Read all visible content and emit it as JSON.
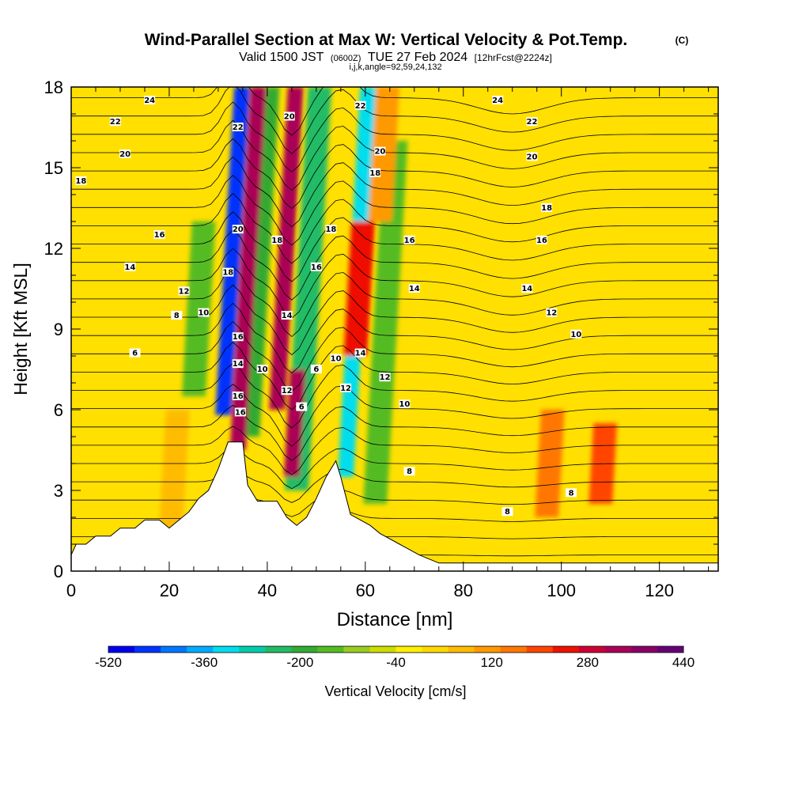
{
  "title": {
    "main": "Wind-Parallel Section at Max W: Vertical Velocity & Pot.Temp.",
    "copyright": "(C)",
    "valid_prefix": "Valid 1500 JST",
    "valid_utc": "(0600Z)",
    "valid_date": "TUE 27 Feb 2024",
    "forecast": "[12hrFcst@2224z]",
    "indices": "i,j,k,angle=92,59,24,132"
  },
  "chart_data": {
    "type": "heatmap",
    "xlabel": "Distance [nm]",
    "ylabel": "Height [Kft MSL]",
    "xlim": [
      0,
      132
    ],
    "ylim": [
      0,
      18
    ],
    "x_ticks": [
      "0",
      "20",
      "40",
      "60",
      "80",
      "100",
      "120"
    ],
    "y_ticks": [
      "0",
      "3",
      "6",
      "9",
      "12",
      "15",
      "18"
    ],
    "background_w": 0,
    "velocity_bands": [
      {
        "x": 31,
        "z0": 5.8,
        "z1": 18,
        "w": -470
      },
      {
        "x": 36,
        "z0": 5.0,
        "z1": 18,
        "w": -210
      },
      {
        "x": 34,
        "z0": 4.5,
        "z1": 18,
        "w": 330
      },
      {
        "x": 42,
        "z0": 6.0,
        "z1": 18,
        "w": 350
      },
      {
        "x": 46,
        "z0": 3.0,
        "z1": 18,
        "w": -250
      },
      {
        "x": 56,
        "z0": 3.5,
        "z1": 18,
        "w": -330
      },
      {
        "x": 62,
        "z0": 2.5,
        "z1": 16,
        "w": -150
      },
      {
        "x": 58,
        "z0": 8.0,
        "z1": 13,
        "w": 260
      },
      {
        "x": 63,
        "z0": 13,
        "z1": 18,
        "w": 120
      },
      {
        "x": 25,
        "z0": 6.5,
        "z1": 13,
        "w": -170
      },
      {
        "x": 45,
        "z0": 3.5,
        "z1": 7.5,
        "w": 310
      },
      {
        "x": 108,
        "z0": 2.5,
        "z1": 5.5,
        "w": 200
      },
      {
        "x": 97,
        "z0": 2.0,
        "z1": 6.0,
        "w": 140
      },
      {
        "x": 20,
        "z0": 0.5,
        "z1": 6.0,
        "w": 80
      }
    ],
    "theta_contours": {
      "levels_labeled": [
        "6",
        "8",
        "10",
        "12",
        "14",
        "16",
        "18",
        "20",
        "22",
        "24"
      ],
      "labels": [
        {
          "t": "24",
          "x": 16,
          "z": 17.5
        },
        {
          "t": "22",
          "x": 9,
          "z": 16.7
        },
        {
          "t": "20",
          "x": 11,
          "z": 15.5
        },
        {
          "t": "18",
          "x": 2,
          "z": 14.5
        },
        {
          "t": "16",
          "x": 18,
          "z": 12.5
        },
        {
          "t": "14",
          "x": 12,
          "z": 11.3
        },
        {
          "t": "12",
          "x": 23,
          "z": 10.4
        },
        {
          "t": "10",
          "x": 27,
          "z": 9.6
        },
        {
          "t": "8",
          "x": 21.5,
          "z": 9.5
        },
        {
          "t": "6",
          "x": 13,
          "z": 8.1
        },
        {
          "t": "22",
          "x": 34,
          "z": 16.5
        },
        {
          "t": "20",
          "x": 34,
          "z": 12.7
        },
        {
          "t": "18",
          "x": 32,
          "z": 11.1
        },
        {
          "t": "16",
          "x": 34,
          "z": 8.7
        },
        {
          "t": "14",
          "x": 34,
          "z": 7.7
        },
        {
          "t": "16",
          "x": 34,
          "z": 6.5
        },
        {
          "t": "16",
          "x": 34.5,
          "z": 5.9
        },
        {
          "t": "20",
          "x": 44.5,
          "z": 16.9
        },
        {
          "t": "18",
          "x": 42,
          "z": 12.3
        },
        {
          "t": "14",
          "x": 44,
          "z": 9.5
        },
        {
          "t": "10",
          "x": 39,
          "z": 7.5
        },
        {
          "t": "12",
          "x": 44,
          "z": 6.7
        },
        {
          "t": "6",
          "x": 47,
          "z": 6.1
        },
        {
          "t": "6",
          "x": 50,
          "z": 7.5
        },
        {
          "t": "16",
          "x": 50,
          "z": 11.3
        },
        {
          "t": "18",
          "x": 53,
          "z": 12.7
        },
        {
          "t": "22",
          "x": 59,
          "z": 17.3
        },
        {
          "t": "20",
          "x": 63,
          "z": 15.6
        },
        {
          "t": "18",
          "x": 62,
          "z": 14.8
        },
        {
          "t": "16",
          "x": 69,
          "z": 12.3
        },
        {
          "t": "14",
          "x": 70,
          "z": 10.5
        },
        {
          "t": "14",
          "x": 59,
          "z": 8.1
        },
        {
          "t": "10",
          "x": 54,
          "z": 7.9
        },
        {
          "t": "12",
          "x": 56,
          "z": 6.8
        },
        {
          "t": "12",
          "x": 64,
          "z": 7.2
        },
        {
          "t": "10",
          "x": 68,
          "z": 6.2
        },
        {
          "t": "8",
          "x": 69,
          "z": 3.7
        },
        {
          "t": "24",
          "x": 87,
          "z": 17.5
        },
        {
          "t": "22",
          "x": 94,
          "z": 16.7
        },
        {
          "t": "20",
          "x": 94,
          "z": 15.4
        },
        {
          "t": "18",
          "x": 97,
          "z": 13.5
        },
        {
          "t": "16",
          "x": 96,
          "z": 12.3
        },
        {
          "t": "14",
          "x": 93,
          "z": 10.5
        },
        {
          "t": "12",
          "x": 98,
          "z": 9.6
        },
        {
          "t": "10",
          "x": 103,
          "z": 8.8
        },
        {
          "t": "8",
          "x": 89,
          "z": 2.2
        },
        {
          "t": "8",
          "x": 102,
          "z": 2.9
        }
      ]
    },
    "terrain_profile": [
      [
        0,
        0.6
      ],
      [
        1,
        1.0
      ],
      [
        3,
        1.0
      ],
      [
        5,
        1.3
      ],
      [
        8,
        1.3
      ],
      [
        10,
        1.6
      ],
      [
        13,
        1.6
      ],
      [
        15,
        1.9
      ],
      [
        18,
        1.9
      ],
      [
        20,
        1.6
      ],
      [
        22,
        1.9
      ],
      [
        24,
        2.2
      ],
      [
        26,
        2.7
      ],
      [
        28,
        3.0
      ],
      [
        30,
        3.8
      ],
      [
        32,
        4.8
      ],
      [
        35,
        4.8
      ],
      [
        36,
        3.2
      ],
      [
        38,
        2.6
      ],
      [
        42,
        2.6
      ],
      [
        44,
        2.0
      ],
      [
        46,
        1.7
      ],
      [
        48,
        2.0
      ],
      [
        50,
        2.7
      ],
      [
        52,
        3.5
      ],
      [
        54,
        4.1
      ],
      [
        55,
        3.5
      ],
      [
        57,
        2.1
      ],
      [
        61,
        1.7
      ],
      [
        63,
        1.4
      ],
      [
        67,
        1.0
      ],
      [
        71,
        0.6
      ],
      [
        75,
        0.3
      ],
      [
        132,
        0.3
      ]
    ]
  },
  "colorbar": {
    "label": "Vertical Velocity [cm/s]",
    "tick_labels": [
      "-520",
      "-360",
      "-200",
      "-40",
      "120",
      "280",
      "440"
    ],
    "min": -520,
    "max": 440,
    "colors": [
      "#0000ee",
      "#0033ff",
      "#0077ff",
      "#00aaff",
      "#00ddee",
      "#00ccaa",
      "#22bb66",
      "#33aa33",
      "#55bb22",
      "#99cc22",
      "#ccdd00",
      "#ffee00",
      "#ffd800",
      "#ffbb00",
      "#ff9900",
      "#ff7700",
      "#ff4400",
      "#ee1100",
      "#cc0033",
      "#aa0055",
      "#880066",
      "#660077"
    ]
  }
}
